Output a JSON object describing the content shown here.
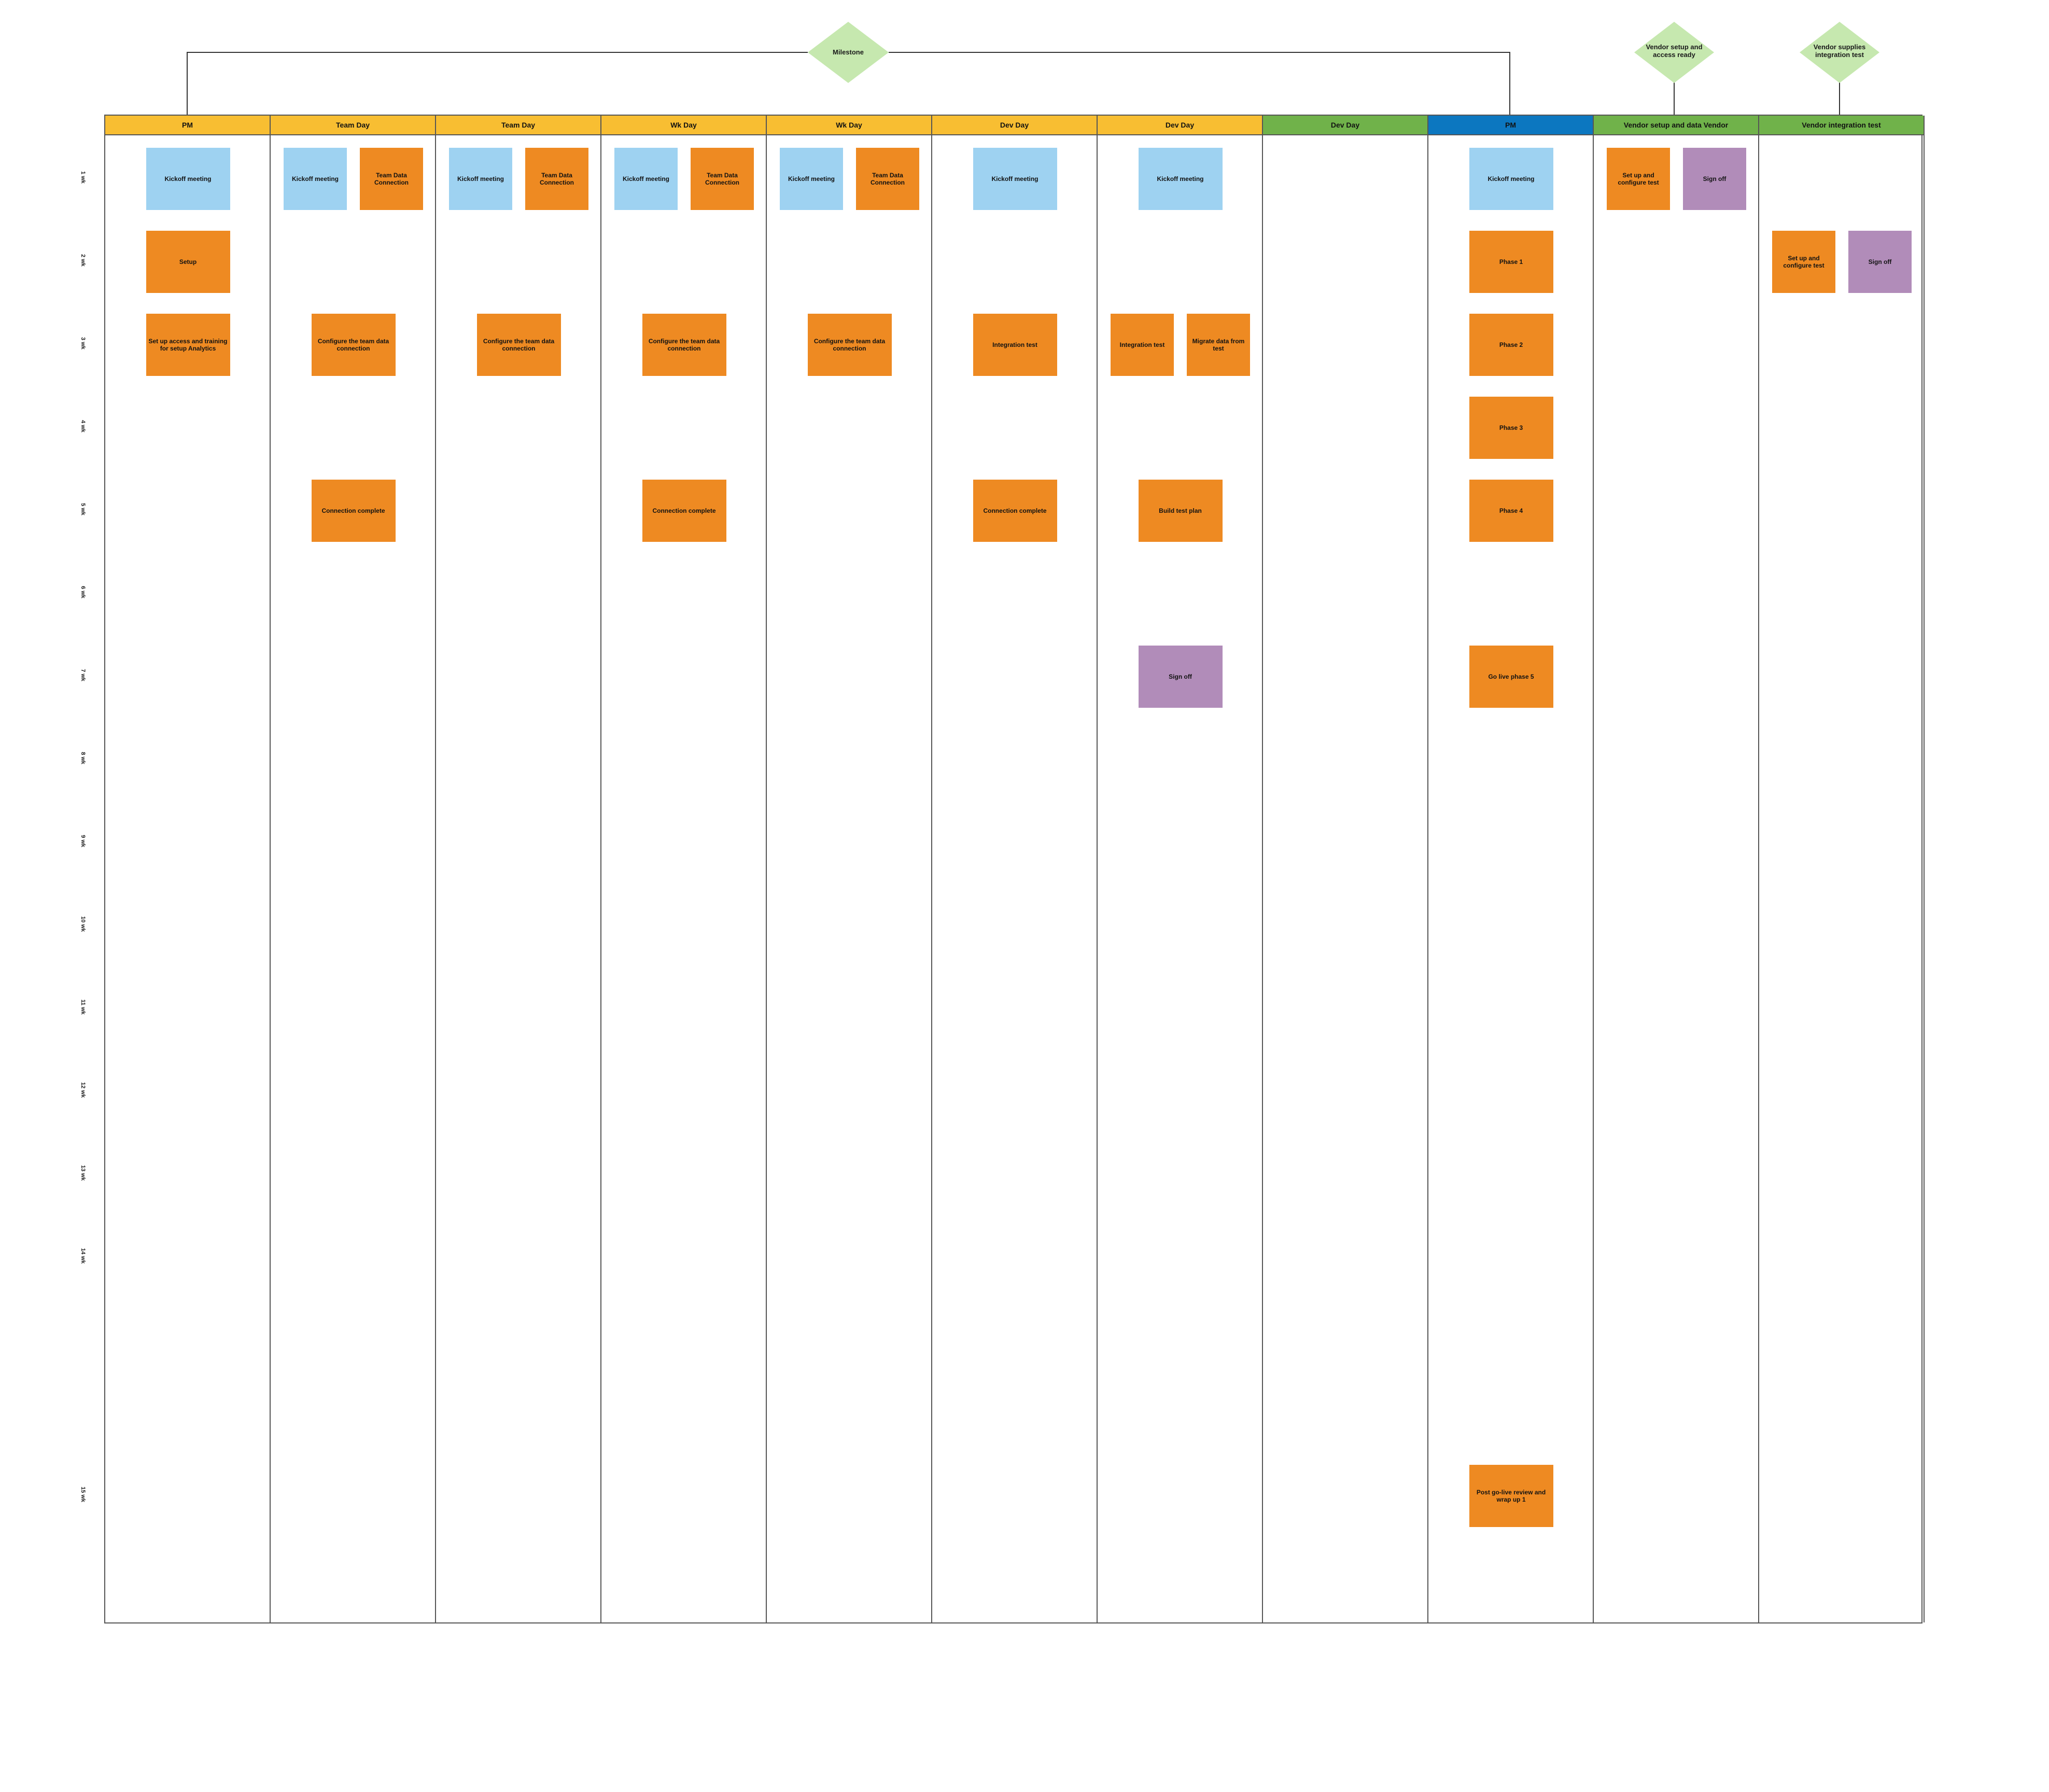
{
  "colors": {
    "lane_orange": "#F8BE32",
    "lane_green": "#70B24A",
    "lane_blue": "#0C77C0",
    "card_blue": "#9ED2F1",
    "card_orange": "#EE8A22",
    "card_purple": "#B18CB9",
    "diamond": "#C6E8AF"
  },
  "diamonds": [
    {
      "label": "Milestone"
    },
    {
      "label": "Vendor setup and access ready"
    },
    {
      "label": "Vendor supplies integration test"
    }
  ],
  "lanes": [
    {
      "title": "PM",
      "color": "lane_orange"
    },
    {
      "title": "Team Day",
      "color": "lane_orange"
    },
    {
      "title": "Team Day",
      "color": "lane_orange"
    },
    {
      "title": "Wk Day",
      "color": "lane_orange"
    },
    {
      "title": "Wk Day",
      "color": "lane_orange"
    },
    {
      "title": "Dev Day",
      "color": "lane_orange"
    },
    {
      "title": "Dev Day",
      "color": "lane_orange"
    },
    {
      "title": "Dev Day",
      "color": "lane_green"
    },
    {
      "title": "PM",
      "color": "lane_blue"
    },
    {
      "title": "Vendor setup and data Vendor",
      "color": "lane_green"
    },
    {
      "title": "Vendor integration test",
      "color": "lane_green"
    }
  ],
  "row_labels": [
    "1 wk",
    "2 wk",
    "3 wk",
    "4 wk",
    "5 wk",
    "6 wk",
    "7 wk",
    "8 wk",
    "9 wk",
    "10 wk",
    "11 wk",
    "12 wk",
    "13 wk",
    "14 wk",
    "15 wk"
  ],
  "cards": [
    {
      "lane": 0,
      "row": 0,
      "slot": "c",
      "color": "card_blue",
      "label": "Kickoff meeting"
    },
    {
      "lane": 0,
      "row": 1,
      "slot": "c",
      "color": "card_orange",
      "label": "Setup"
    },
    {
      "lane": 0,
      "row": 2,
      "slot": "c",
      "color": "card_orange",
      "label": "Set up access and training for setup Analytics"
    },
    {
      "lane": 1,
      "row": 0,
      "slot": "l",
      "color": "card_blue",
      "label": "Kickoff meeting"
    },
    {
      "lane": 1,
      "row": 0,
      "slot": "r",
      "color": "card_orange",
      "label": "Team Data Connection"
    },
    {
      "lane": 1,
      "row": 2,
      "slot": "c",
      "color": "card_orange",
      "label": "Configure the team data connection"
    },
    {
      "lane": 1,
      "row": 4,
      "slot": "c",
      "color": "card_orange",
      "label": "Connection complete"
    },
    {
      "lane": 2,
      "row": 0,
      "slot": "l",
      "color": "card_blue",
      "label": "Kickoff meeting"
    },
    {
      "lane": 2,
      "row": 0,
      "slot": "r",
      "color": "card_orange",
      "label": "Team Data Connection"
    },
    {
      "lane": 2,
      "row": 2,
      "slot": "c",
      "color": "card_orange",
      "label": "Configure the team data connection"
    },
    {
      "lane": 3,
      "row": 0,
      "slot": "l",
      "color": "card_blue",
      "label": "Kickoff meeting"
    },
    {
      "lane": 3,
      "row": 0,
      "slot": "r",
      "color": "card_orange",
      "label": "Team Data Connection"
    },
    {
      "lane": 3,
      "row": 2,
      "slot": "c",
      "color": "card_orange",
      "label": "Configure the team data connection"
    },
    {
      "lane": 3,
      "row": 4,
      "slot": "c",
      "color": "card_orange",
      "label": "Connection complete"
    },
    {
      "lane": 4,
      "row": 0,
      "slot": "l",
      "color": "card_blue",
      "label": "Kickoff meeting"
    },
    {
      "lane": 4,
      "row": 0,
      "slot": "r",
      "color": "card_orange",
      "label": "Team Data Connection"
    },
    {
      "lane": 4,
      "row": 2,
      "slot": "c",
      "color": "card_orange",
      "label": "Configure the team data connection"
    },
    {
      "lane": 5,
      "row": 0,
      "slot": "c",
      "color": "card_blue",
      "label": "Kickoff meeting"
    },
    {
      "lane": 5,
      "row": 2,
      "slot": "c",
      "color": "card_orange",
      "label": "Integration test"
    },
    {
      "lane": 5,
      "row": 4,
      "slot": "c",
      "color": "card_orange",
      "label": "Connection complete"
    },
    {
      "lane": 6,
      "row": 0,
      "slot": "c",
      "color": "card_blue",
      "label": "Kickoff meeting"
    },
    {
      "lane": 6,
      "row": 2,
      "slot": "l",
      "color": "card_orange",
      "label": "Integration test"
    },
    {
      "lane": 6,
      "row": 2,
      "slot": "r",
      "color": "card_orange",
      "label": "Migrate data from test"
    },
    {
      "lane": 6,
      "row": 4,
      "slot": "c",
      "color": "card_orange",
      "label": "Build test plan"
    },
    {
      "lane": 6,
      "row": 6,
      "slot": "c",
      "color": "card_purple",
      "label": "Sign off"
    },
    {
      "lane": 8,
      "row": 0,
      "slot": "c",
      "color": "card_blue",
      "label": "Kickoff meeting"
    },
    {
      "lane": 8,
      "row": 1,
      "slot": "c",
      "color": "card_orange",
      "label": "Phase 1"
    },
    {
      "lane": 8,
      "row": 2,
      "slot": "c",
      "color": "card_orange",
      "label": "Phase 2"
    },
    {
      "lane": 8,
      "row": 3,
      "slot": "c",
      "color": "card_orange",
      "label": "Phase 3"
    },
    {
      "lane": 8,
      "row": 4,
      "slot": "c",
      "color": "card_orange",
      "label": "Phase 4"
    },
    {
      "lane": 8,
      "row": 6,
      "slot": "c",
      "color": "card_orange",
      "label": "Go live phase 5"
    },
    {
      "lane": 8,
      "row": 15,
      "slot": "c",
      "color": "card_orange",
      "label": "Post go-live review and wrap up 1"
    },
    {
      "lane": 9,
      "row": 0,
      "slot": "l",
      "color": "card_orange",
      "label": "Set up and configure test"
    },
    {
      "lane": 9,
      "row": 0,
      "slot": "r",
      "color": "card_purple",
      "label": "Sign off"
    },
    {
      "lane": 10,
      "row": 1,
      "slot": "l",
      "color": "card_orange",
      "label": "Set up and configure test"
    },
    {
      "lane": 10,
      "row": 1,
      "slot": "r",
      "color": "card_purple",
      "label": "Sign off"
    }
  ]
}
